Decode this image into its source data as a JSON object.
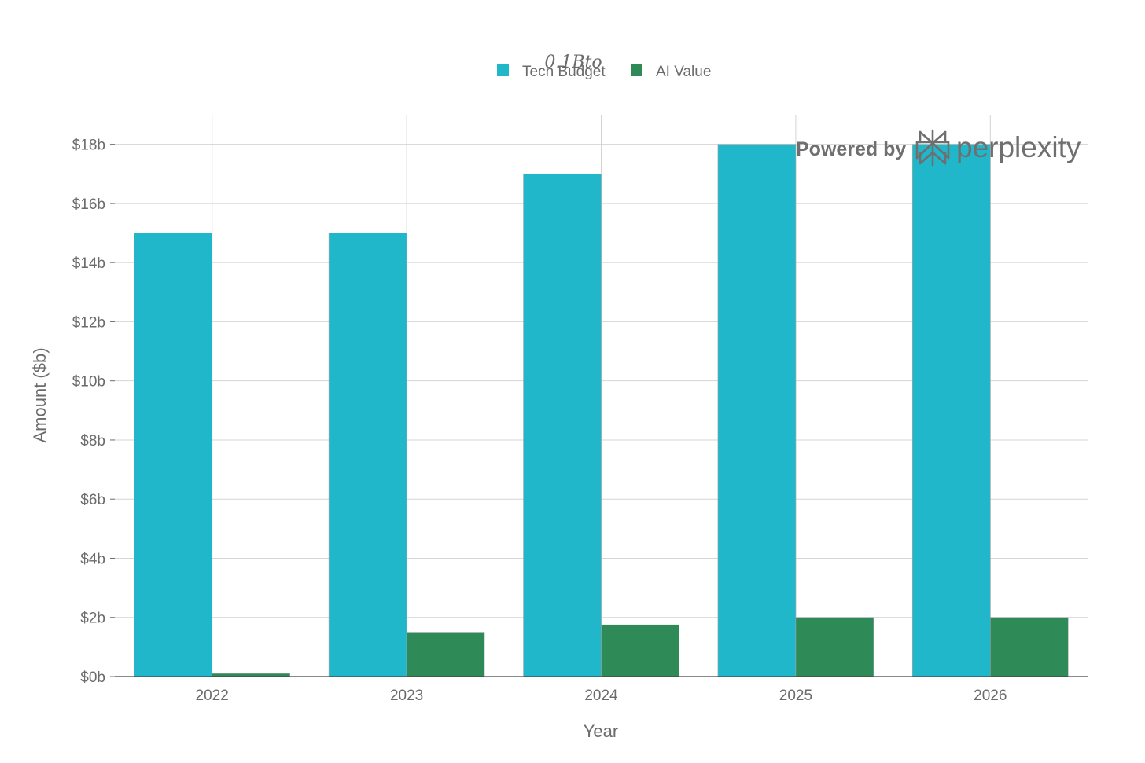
{
  "chart_data": {
    "type": "bar",
    "title": "0.1Bto",
    "xlabel": "Year",
    "ylabel": "Amount ($b)",
    "categories": [
      "2022",
      "2023",
      "2024",
      "2025",
      "2026"
    ],
    "series": [
      {
        "name": "Tech Budget",
        "color": "#21b7cb",
        "values": [
          15,
          15,
          17,
          18,
          18
        ]
      },
      {
        "name": "AI Value",
        "color": "#2e8b57",
        "values": [
          0.1,
          1.5,
          1.75,
          2,
          2
        ]
      }
    ],
    "ylim": [
      0,
      19
    ],
    "yticks": [
      0,
      2,
      4,
      6,
      8,
      10,
      12,
      14,
      16,
      18
    ],
    "ytick_labels": [
      "$0b",
      "$2b",
      "$4b",
      "$6b",
      "$8b",
      "$10b",
      "$12b",
      "$14b",
      "$16b",
      "$18b"
    ],
    "grid": true,
    "legend_position": "top-center"
  },
  "watermark": {
    "prefix": "Powered by",
    "brand": "perplexity",
    "icon": "perplexity-logo-icon"
  }
}
